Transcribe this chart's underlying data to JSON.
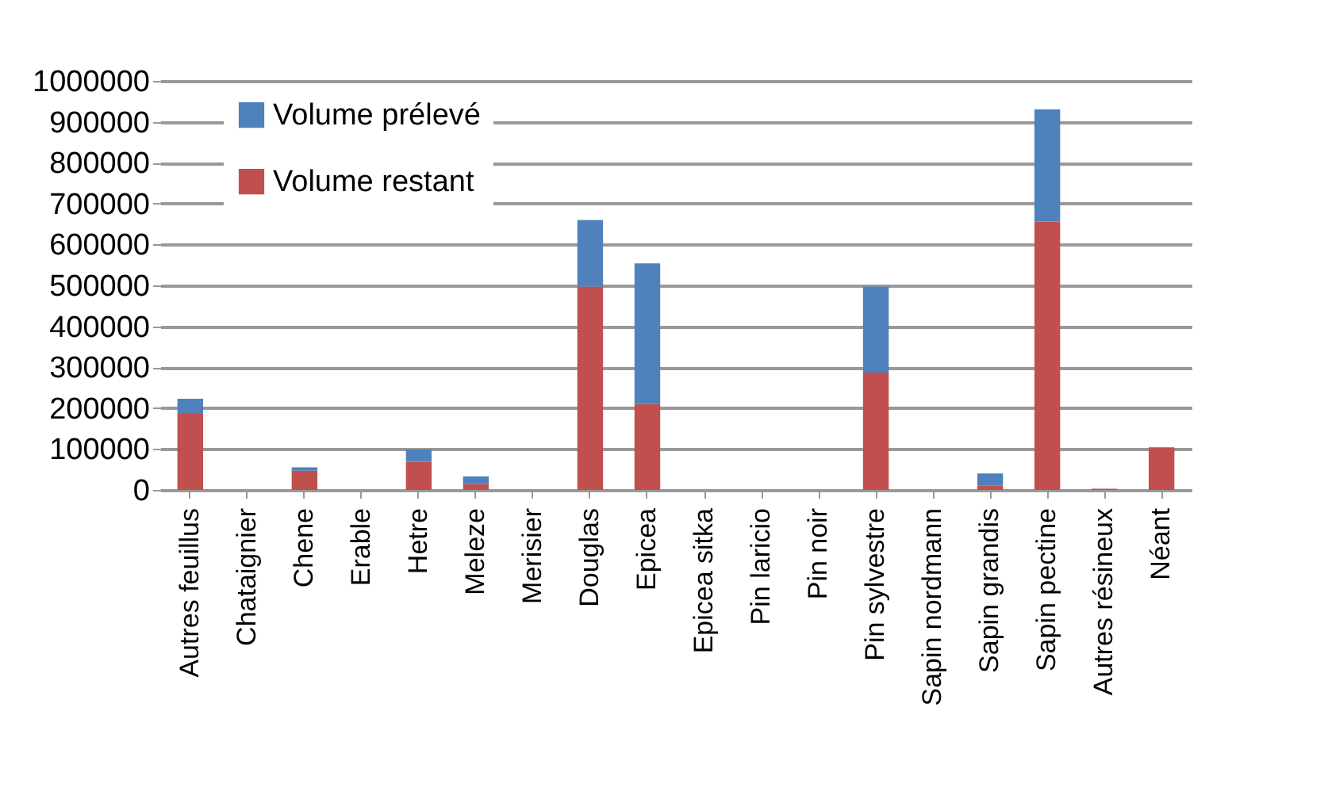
{
  "chart_data": {
    "type": "bar",
    "stacked": true,
    "categories": [
      "Autres feuillus",
      "Chataignier",
      "Chene",
      "Erable",
      "Hetre",
      "Meleze",
      "Merisier",
      "Douglas",
      "Epicea",
      "Epicea sitka",
      "Pin laricio",
      "Pin noir",
      "Pin sylvestre",
      "Sapin nordmann",
      "Sapin grandis",
      "Sapin pectine",
      "Autres résineux",
      "Néant"
    ],
    "series": [
      {
        "name": "Volume restant",
        "color": "#c0504d",
        "values": [
          186000,
          0,
          47000,
          0,
          69000,
          14000,
          0,
          497000,
          210000,
          0,
          0,
          0,
          287000,
          0,
          10000,
          656000,
          3000,
          104000
        ]
      },
      {
        "name": "Volume prélevé",
        "color": "#4f81bd",
        "values": [
          37000,
          0,
          8000,
          0,
          30000,
          19000,
          0,
          163000,
          344000,
          0,
          0,
          0,
          210000,
          0,
          30000,
          274000,
          0,
          0
        ]
      }
    ],
    "ylim": [
      0,
      1000000
    ],
    "yticks": [
      0,
      100000,
      200000,
      300000,
      400000,
      500000,
      600000,
      700000,
      800000,
      900000,
      1000000
    ],
    "grid": "y",
    "legend": "top left"
  }
}
